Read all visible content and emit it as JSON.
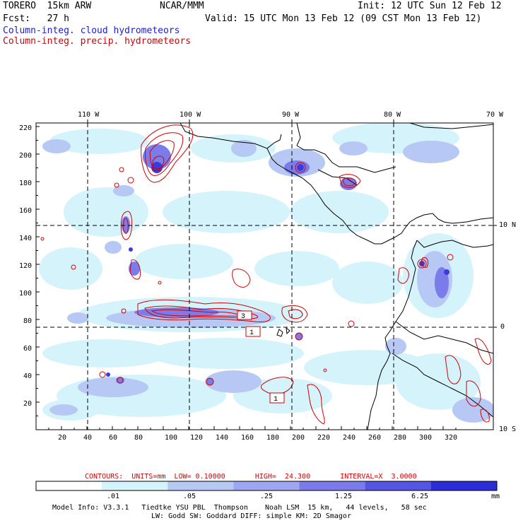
{
  "header": {
    "model": "TORERO  15km ARW",
    "org": "NCAR/MMM",
    "init": "Init: 12 UTC Sun 12 Feb 12",
    "fcst": "Fcst:   27 h",
    "valid": "Valid: 15 UTC Mon 13 Feb 12 (09 CST Mon 13 Feb 12)",
    "field_cloud": "Column-integ. cloud hydrometeors",
    "field_precip": "Column-integ. precip. hydrometeors"
  },
  "axes": {
    "top_lon_labels": [
      "110 W",
      "100 W",
      "90 W",
      "80 W",
      "70 W"
    ],
    "right_lat_labels": [
      "10 N",
      "0",
      "10 S"
    ],
    "left_ticks": [
      "220",
      "200",
      "180",
      "160",
      "140",
      "120",
      "100",
      "80",
      "60",
      "40",
      "20"
    ],
    "bottom_ticks": [
      "20",
      "40",
      "60",
      "80",
      "100",
      "120",
      "140",
      "160",
      "180",
      "200",
      "220",
      "240",
      "260",
      "280",
      "300",
      "320"
    ]
  },
  "contour_labels": [
    "3",
    "1",
    "1"
  ],
  "contour_info": "CONTOURS:  UNITS=mm  LOW= 0.10000       HIGH=  24.300       INTERVAL=X  3.0000",
  "colorbar": {
    "thresholds": [
      ".01",
      ".05",
      ".25",
      "1.25",
      "6.25"
    ],
    "units": "mm",
    "colors": [
      "#ffffff",
      "#d5f3fb",
      "#b8c8f4",
      "#9ea6f0",
      "#7b7bea",
      "#5555e2",
      "#2d2dd8"
    ]
  },
  "colors": {
    "cloud": "#1b1bd6",
    "precip": "#d40000"
  },
  "footer": {
    "line1": "Model Info: V3.3.1   Tiedtke YSU PBL  Thompson    Noah LSM  15 km,   44 levels,   58 sec",
    "line2": "LW: Godd SW: Goddard DIFF: simple KM: 2D Smagor"
  }
}
